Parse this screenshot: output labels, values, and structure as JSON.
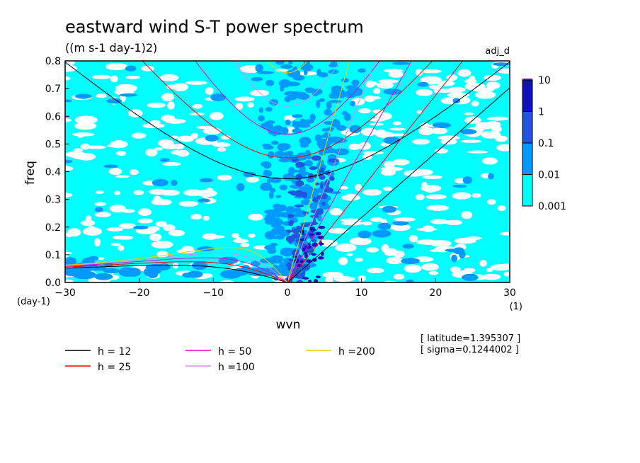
{
  "chart_data": {
    "type": "heatmap",
    "title": "eastward wind S-T power spectrum",
    "subtitle": "((m s-1 day-1)2)",
    "tag": "adj_d",
    "xlabel": "wvn",
    "ylabel": "freq",
    "x_unit": "(1)",
    "y_unit": "(day-1)",
    "xlim": [
      -30,
      30
    ],
    "ylim": [
      0,
      0.8
    ],
    "x_ticks": [
      "-30",
      "-20",
      "-10",
      "0",
      "10",
      "20",
      "30"
    ],
    "y_ticks": [
      "0.0",
      "0.1",
      "0.2",
      "0.3",
      "0.4",
      "0.5",
      "0.6",
      "0.7",
      "0.8"
    ],
    "colorbar": {
      "levels": [
        "0.001",
        "0.01",
        "0.1",
        "1",
        "10"
      ],
      "colors": [
        "#00ffff",
        "#0099ff",
        "#2255dd",
        "#1111bb",
        "#5511aa"
      ]
    },
    "field_colors": {
      "low": "#ffffff",
      "l1": "#00ffff",
      "l2": "#0099ff",
      "l3": "#2255dd",
      "l4": "#1111bb"
    },
    "curves": [
      {
        "name": "h = 12",
        "h": 12,
        "color": "#000000"
      },
      {
        "name": "h = 25",
        "h": 25,
        "color": "#ff0000"
      },
      {
        "name": "h = 50",
        "h": 50,
        "color": "#ee00cc"
      },
      {
        "name": "h =100",
        "h": 100,
        "color": "#dd88ee"
      },
      {
        "name": "h =200",
        "h": 200,
        "color": "#eecc00"
      }
    ],
    "info": [
      "[ latitude=1.395307 ]",
      "[ sigma=0.1244002 ]"
    ]
  }
}
